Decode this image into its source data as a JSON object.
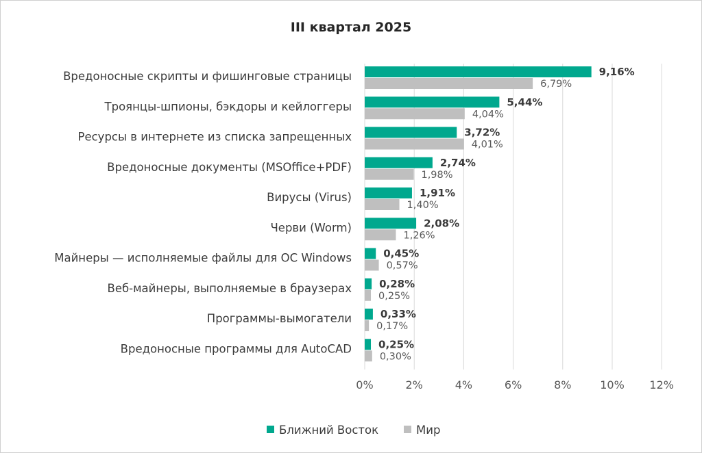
{
  "chart_data": {
    "type": "bar",
    "orientation": "horizontal",
    "title": "III квартал 2025",
    "categories": [
      "Вредоносные скрипты и фишинговые страницы",
      "Троянцы-шпионы, бэкдоры и кейлоггеры",
      "Ресурсы в интернете из списка запрещенных",
      "Вредоносные документы (MSOffice+PDF)",
      "Вирусы (Virus)",
      "Черви (Worm)",
      "Майнеры — исполняемые файлы для ОС Windows",
      "Веб-майнеры, выполняемые в браузерах",
      "Программы-вымогатели",
      "Вредоносные программы для AutoCAD"
    ],
    "series": [
      {
        "name": "Ближний Восток",
        "color": "#00a88e",
        "values": [
          9.16,
          5.44,
          3.72,
          2.74,
          1.91,
          2.08,
          0.45,
          0.28,
          0.33,
          0.25
        ],
        "labels": [
          "9,16%",
          "5,44%",
          "3,72%",
          "2,74%",
          "1,91%",
          "2,08%",
          "0,45%",
          "0,28%",
          "0,33%",
          "0,25%"
        ]
      },
      {
        "name": "Мир",
        "color": "#bfbfbf",
        "values": [
          6.79,
          4.04,
          4.01,
          1.98,
          1.4,
          1.26,
          0.57,
          0.25,
          0.17,
          0.3
        ],
        "labels": [
          "6,79%",
          "4,04%",
          "4,01%",
          "1,98%",
          "1,40%",
          "1,26%",
          "0,57%",
          "0,25%",
          "0,17%",
          "0,30%"
        ]
      }
    ],
    "xlim": [
      0,
      12
    ],
    "xticks": [
      "0%",
      "2%",
      "4%",
      "6%",
      "8%",
      "10%",
      "12%"
    ],
    "grid": "vertical",
    "legend_position": "bottom"
  }
}
